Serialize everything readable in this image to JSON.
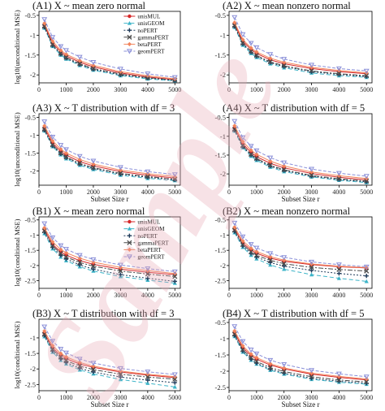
{
  "figure": {
    "watermark": "Sample",
    "colors": {
      "unisMUL": "#d62728",
      "unisGEOM": "#3cb4c8",
      "noPERT": "#1f3b5a",
      "gammaPERT": "#4a4a4a",
      "betaPERT": "#f2845c",
      "geomPERT": "#8a8fd8",
      "watermark": "#e8a6b4"
    }
  },
  "chart_data": [
    {
      "type": "line",
      "title": "(A1) X ~ mean zero normal",
      "xlabel": "",
      "ylabel": "log10(unconditional MSE)",
      "x": [
        200,
        500,
        800,
        1000,
        1500,
        2000,
        3000,
        4000,
        5000
      ],
      "xlim": [
        0,
        5200
      ],
      "ylim": [
        -2.2,
        -0.4
      ],
      "xticks": [
        0,
        1000,
        2000,
        3000,
        4000,
        5000
      ],
      "yticks": [
        -0.5,
        -1,
        -1.5,
        -2
      ],
      "yticklabels": [
        "-0.5",
        "-1",
        "-1.5",
        "-2"
      ],
      "xticklabels": [
        "0",
        "1000",
        "2000",
        "3000",
        "4000",
        "5000"
      ],
      "legend": {
        "position": "top-right",
        "entries": [
          "unisMUL",
          "unisGEOM",
          "noPERT",
          "gammaPERT",
          "betaPERT",
          "geomPERT"
        ]
      },
      "series": [
        {
          "name": "unisMUL",
          "values": [
            -0.75,
            -1.2,
            -1.42,
            -1.52,
            -1.68,
            -1.8,
            -1.95,
            -2.05,
            -2.12
          ]
        },
        {
          "name": "unisGEOM",
          "values": [
            -0.82,
            -1.28,
            -1.5,
            -1.6,
            -1.76,
            -1.88,
            -2.02,
            -2.1,
            -2.15
          ]
        },
        {
          "name": "noPERT",
          "values": [
            -0.8,
            -1.26,
            -1.48,
            -1.58,
            -1.74,
            -1.86,
            -2.0,
            -2.08,
            -2.14
          ]
        },
        {
          "name": "gammaPERT",
          "values": [
            -0.78,
            -1.24,
            -1.46,
            -1.56,
            -1.72,
            -1.84,
            -1.98,
            -2.07,
            -2.13
          ]
        },
        {
          "name": "betaPERT",
          "values": [
            -0.7,
            -1.15,
            -1.38,
            -1.48,
            -1.64,
            -1.76,
            -1.92,
            -2.02,
            -2.1
          ]
        },
        {
          "name": "geomPERT",
          "values": [
            -0.6,
            -1.05,
            -1.28,
            -1.38,
            -1.55,
            -1.68,
            -1.85,
            -1.97,
            -2.06
          ]
        }
      ]
    },
    {
      "type": "line",
      "title": "(A2) X ~ mean nonzero normal",
      "xlabel": "",
      "ylabel": "",
      "x": [
        200,
        500,
        800,
        1000,
        1500,
        2000,
        3000,
        4000,
        5000
      ],
      "xlim": [
        0,
        5200
      ],
      "ylim": [
        -2.2,
        -0.4
      ],
      "xticks": [
        0,
        1000,
        2000,
        3000,
        4000,
        5000
      ],
      "yticks": [
        -0.5,
        -1,
        -1.5,
        -2
      ],
      "yticklabels": [
        "-0.5",
        "-1",
        "-1.5",
        "-2"
      ],
      "xticklabels": [
        "0",
        "1000",
        "2000",
        "3000",
        "4000",
        "5000"
      ],
      "series": [
        {
          "name": "unisMUL",
          "values": [
            -0.72,
            -1.15,
            -1.36,
            -1.46,
            -1.62,
            -1.72,
            -1.84,
            -1.92,
            -1.97
          ]
        },
        {
          "name": "unisGEOM",
          "values": [
            -0.8,
            -1.25,
            -1.46,
            -1.56,
            -1.72,
            -1.82,
            -1.95,
            -2.02,
            -2.06
          ]
        },
        {
          "name": "noPERT",
          "values": [
            -0.78,
            -1.22,
            -1.43,
            -1.53,
            -1.69,
            -1.79,
            -1.92,
            -1.99,
            -2.04
          ]
        },
        {
          "name": "gammaPERT",
          "values": [
            -0.76,
            -1.2,
            -1.41,
            -1.51,
            -1.67,
            -1.77,
            -1.9,
            -1.97,
            -2.02
          ]
        },
        {
          "name": "betaPERT",
          "values": [
            -0.68,
            -1.11,
            -1.32,
            -1.42,
            -1.58,
            -1.68,
            -1.81,
            -1.89,
            -1.95
          ]
        },
        {
          "name": "geomPERT",
          "values": [
            -0.55,
            -0.98,
            -1.2,
            -1.31,
            -1.48,
            -1.6,
            -1.75,
            -1.84,
            -1.9
          ]
        }
      ]
    },
    {
      "type": "line",
      "title": "(A3) X ~ T distribution with df = 3",
      "xlabel": "Subset Size r",
      "ylabel": "log10(unconditional MSE)",
      "x": [
        200,
        500,
        800,
        1000,
        1500,
        2000,
        3000,
        4000,
        5000
      ],
      "xlim": [
        0,
        5200
      ],
      "ylim": [
        -2.4,
        -0.4
      ],
      "xticks": [
        0,
        1000,
        2000,
        3000,
        4000,
        5000
      ],
      "yticks": [
        -0.5,
        -1,
        -1.5,
        -2
      ],
      "yticklabels": [
        "-0.5",
        "-1",
        "-1.5",
        "-2"
      ],
      "xticklabels": [
        "0",
        "1000",
        "2000",
        "3000",
        "4000",
        "5000"
      ],
      "series": [
        {
          "name": "unisMUL",
          "values": [
            -0.8,
            -1.22,
            -1.45,
            -1.56,
            -1.74,
            -1.86,
            -2.02,
            -2.12,
            -2.2
          ]
        },
        {
          "name": "unisGEOM",
          "values": [
            -0.88,
            -1.32,
            -1.55,
            -1.66,
            -1.84,
            -1.96,
            -2.12,
            -2.21,
            -2.27
          ]
        },
        {
          "name": "noPERT",
          "values": [
            -0.86,
            -1.3,
            -1.52,
            -1.63,
            -1.81,
            -1.93,
            -2.09,
            -2.18,
            -2.25
          ]
        },
        {
          "name": "gammaPERT",
          "values": [
            -0.84,
            -1.27,
            -1.5,
            -1.61,
            -1.79,
            -1.91,
            -2.07,
            -2.16,
            -2.23
          ]
        },
        {
          "name": "betaPERT",
          "values": [
            -0.74,
            -1.16,
            -1.39,
            -1.5,
            -1.68,
            -1.81,
            -1.98,
            -2.08,
            -2.16
          ]
        },
        {
          "name": "geomPERT",
          "values": [
            -0.62,
            -1.05,
            -1.28,
            -1.4,
            -1.59,
            -1.72,
            -1.9,
            -2.02,
            -2.1
          ]
        }
      ]
    },
    {
      "type": "line",
      "title": "(A4) X ~ T distribution with df = 5",
      "xlabel": "Subset Size r",
      "ylabel": "",
      "x": [
        200,
        500,
        800,
        1000,
        1500,
        2000,
        3000,
        4000,
        5000
      ],
      "xlim": [
        0,
        5200
      ],
      "ylim": [
        -2.3,
        -0.4
      ],
      "xticks": [
        0,
        1000,
        2000,
        3000,
        4000,
        5000
      ],
      "yticks": [
        -0.5,
        -1,
        -1.5,
        -2
      ],
      "yticklabels": [
        "-0.5",
        "-1",
        "-1.5",
        "-2"
      ],
      "xticklabels": [
        "0",
        "1000",
        "2000",
        "3000",
        "4000",
        "5000"
      ],
      "series": [
        {
          "name": "unisMUL",
          "values": [
            -0.78,
            -1.2,
            -1.43,
            -1.54,
            -1.72,
            -1.84,
            -1.99,
            -2.09,
            -2.16
          ]
        },
        {
          "name": "unisGEOM",
          "values": [
            -0.86,
            -1.3,
            -1.53,
            -1.64,
            -1.82,
            -1.94,
            -2.08,
            -2.17,
            -2.23
          ]
        },
        {
          "name": "noPERT",
          "values": [
            -0.84,
            -1.28,
            -1.5,
            -1.61,
            -1.79,
            -1.91,
            -2.06,
            -2.15,
            -2.21
          ]
        },
        {
          "name": "gammaPERT",
          "values": [
            -0.82,
            -1.25,
            -1.48,
            -1.59,
            -1.77,
            -1.89,
            -2.04,
            -2.13,
            -2.19
          ]
        },
        {
          "name": "betaPERT",
          "values": [
            -0.72,
            -1.14,
            -1.37,
            -1.48,
            -1.66,
            -1.79,
            -1.95,
            -2.05,
            -2.12
          ]
        },
        {
          "name": "geomPERT",
          "values": [
            -0.6,
            -1.03,
            -1.26,
            -1.38,
            -1.57,
            -1.7,
            -1.87,
            -1.98,
            -2.06
          ]
        }
      ]
    },
    {
      "type": "line",
      "title": "(B1) X ~ mean zero normal",
      "xlabel": "",
      "ylabel": "log10(conditional MSE)",
      "x": [
        200,
        500,
        800,
        1000,
        1500,
        2000,
        3000,
        4000,
        5000
      ],
      "xlim": [
        0,
        5200
      ],
      "ylim": [
        -2.75,
        -0.4
      ],
      "xticks": [
        0,
        1000,
        2000,
        3000,
        4000,
        5000
      ],
      "yticks": [
        -0.5,
        -1,
        -1.5,
        -2,
        -2.5
      ],
      "yticklabels": [
        "-0.5",
        "-1",
        "-1.5",
        "-2",
        "-2.5"
      ],
      "xticklabels": [
        "0",
        "1000",
        "2000",
        "3000",
        "4000",
        "5000"
      ],
      "legend": {
        "position": "top-right",
        "entries": [
          "unisMUL",
          "unisGEOM",
          "noPERT",
          "gammaPERT",
          "betaPERT",
          "geomPERT"
        ]
      },
      "series": [
        {
          "name": "unisMUL",
          "values": [
            -0.82,
            -1.3,
            -1.55,
            -1.66,
            -1.84,
            -1.96,
            -2.12,
            -2.22,
            -2.3
          ]
        },
        {
          "name": "unisGEOM",
          "values": [
            -0.95,
            -1.45,
            -1.72,
            -1.84,
            -2.04,
            -2.18,
            -2.36,
            -2.48,
            -2.58
          ]
        },
        {
          "name": "noPERT",
          "values": [
            -0.9,
            -1.4,
            -1.66,
            -1.78,
            -1.98,
            -2.12,
            -2.3,
            -2.42,
            -2.52
          ]
        },
        {
          "name": "gammaPERT",
          "values": [
            -0.86,
            -1.35,
            -1.6,
            -1.72,
            -1.9,
            -2.02,
            -2.18,
            -2.28,
            -2.36
          ]
        },
        {
          "name": "betaPERT",
          "values": [
            -0.76,
            -1.22,
            -1.47,
            -1.58,
            -1.76,
            -1.89,
            -2.06,
            -2.17,
            -2.26
          ]
        },
        {
          "name": "geomPERT",
          "values": [
            -0.62,
            -1.08,
            -1.34,
            -1.46,
            -1.66,
            -1.8,
            -1.98,
            -2.1,
            -2.2
          ]
        }
      ]
    },
    {
      "type": "line",
      "title": "(B2) X ~ mean nonzero normal",
      "xlabel": "",
      "ylabel": "",
      "x": [
        200,
        500,
        800,
        1000,
        1500,
        2000,
        3000,
        4000,
        5000
      ],
      "xlim": [
        0,
        5200
      ],
      "ylim": [
        -2.75,
        -0.4
      ],
      "xticks": [
        0,
        1000,
        2000,
        3000,
        4000,
        5000
      ],
      "yticks": [
        -0.5,
        -1,
        -1.5,
        -2,
        -2.5
      ],
      "yticklabels": [
        "-0.5",
        "-1",
        "-1.5",
        "-2",
        "-2.5"
      ],
      "xticklabels": [
        "0",
        "1000",
        "2000",
        "3000",
        "4000",
        "5000"
      ],
      "series": [
        {
          "name": "unisMUL",
          "values": [
            -0.8,
            -1.26,
            -1.49,
            -1.6,
            -1.76,
            -1.86,
            -1.97,
            -2.04,
            -2.08
          ]
        },
        {
          "name": "unisGEOM",
          "values": [
            -0.92,
            -1.4,
            -1.66,
            -1.78,
            -1.98,
            -2.12,
            -2.3,
            -2.42,
            -2.52
          ]
        },
        {
          "name": "noPERT",
          "values": [
            -0.88,
            -1.36,
            -1.6,
            -1.72,
            -1.9,
            -2.02,
            -2.16,
            -2.26,
            -2.34
          ]
        },
        {
          "name": "gammaPERT",
          "values": [
            -0.84,
            -1.31,
            -1.55,
            -1.66,
            -1.83,
            -1.94,
            -2.06,
            -2.13,
            -2.18
          ]
        },
        {
          "name": "betaPERT",
          "values": [
            -0.74,
            -1.19,
            -1.43,
            -1.54,
            -1.71,
            -1.82,
            -1.95,
            -2.02,
            -2.07
          ]
        },
        {
          "name": "geomPERT",
          "values": [
            -0.6,
            -1.05,
            -1.3,
            -1.42,
            -1.6,
            -1.73,
            -1.88,
            -1.97,
            -2.04
          ]
        }
      ]
    },
    {
      "type": "line",
      "title": "(B3) X ~ T distribution with df = 3",
      "xlabel": "Subset Size r",
      "ylabel": "log10(conditional MSE)",
      "x": [
        200,
        500,
        800,
        1000,
        1500,
        2000,
        3000,
        4000,
        5000
      ],
      "xlim": [
        0,
        5200
      ],
      "ylim": [
        -2.7,
        -0.4
      ],
      "xticks": [
        0,
        1000,
        2000,
        3000,
        4000,
        5000
      ],
      "yticks": [
        -1,
        -1.5,
        -2,
        -2.5
      ],
      "yticklabels": [
        "-1",
        "-1.5",
        "-2",
        "-2.5"
      ],
      "xticklabels": [
        "0",
        "1000",
        "2000",
        "3000",
        "4000",
        "5000"
      ],
      "series": [
        {
          "name": "unisMUL",
          "values": [
            -0.85,
            -1.32,
            -1.56,
            -1.67,
            -1.84,
            -1.95,
            -2.1,
            -2.2,
            -2.28
          ]
        },
        {
          "name": "unisGEOM",
          "values": [
            -0.96,
            -1.46,
            -1.72,
            -1.84,
            -2.03,
            -2.16,
            -2.34,
            -2.46,
            -2.58
          ]
        },
        {
          "name": "noPERT",
          "values": [
            -0.92,
            -1.42,
            -1.67,
            -1.79,
            -1.98,
            -2.1,
            -2.26,
            -2.36,
            -2.44
          ]
        },
        {
          "name": "gammaPERT",
          "values": [
            -0.89,
            -1.37,
            -1.62,
            -1.73,
            -1.91,
            -2.02,
            -2.17,
            -2.26,
            -2.33
          ]
        },
        {
          "name": "betaPERT",
          "values": [
            -0.78,
            -1.25,
            -1.5,
            -1.61,
            -1.79,
            -1.91,
            -2.07,
            -2.17,
            -2.25
          ]
        },
        {
          "name": "geomPERT",
          "values": [
            -0.64,
            -1.1,
            -1.36,
            -1.48,
            -1.68,
            -1.81,
            -1.98,
            -2.09,
            -2.18
          ]
        }
      ]
    },
    {
      "type": "line",
      "title": "(B4) X ~ T distribution with df = 5",
      "xlabel": "Subset Size r",
      "ylabel": "",
      "x": [
        200,
        500,
        800,
        1000,
        1500,
        2000,
        3000,
        4000,
        5000
      ],
      "xlim": [
        0,
        5200
      ],
      "ylim": [
        -2.6,
        -0.4
      ],
      "xticks": [
        0,
        1000,
        2000,
        3000,
        4000,
        5000
      ],
      "yticks": [
        -0.5,
        -1,
        -1.5,
        -2,
        -2.5
      ],
      "yticklabels": [
        "-0.5",
        "-1",
        "-1.5",
        "-2",
        "-2.5"
      ],
      "xticklabels": [
        "0",
        "1000",
        "2000",
        "3000",
        "4000",
        "5000"
      ],
      "series": [
        {
          "name": "unisMUL",
          "values": [
            -0.82,
            -1.28,
            -1.52,
            -1.63,
            -1.81,
            -1.93,
            -2.09,
            -2.19,
            -2.27
          ]
        },
        {
          "name": "unisGEOM",
          "values": [
            -0.93,
            -1.41,
            -1.66,
            -1.78,
            -1.97,
            -2.09,
            -2.25,
            -2.34,
            -2.4
          ]
        },
        {
          "name": "noPERT",
          "values": [
            -0.9,
            -1.38,
            -1.63,
            -1.75,
            -1.94,
            -2.06,
            -2.22,
            -2.31,
            -2.37
          ]
        },
        {
          "name": "gammaPERT",
          "values": [
            -0.86,
            -1.34,
            -1.58,
            -1.7,
            -1.89,
            -2.01,
            -2.17,
            -2.27,
            -2.33
          ]
        },
        {
          "name": "betaPERT",
          "values": [
            -0.76,
            -1.22,
            -1.47,
            -1.58,
            -1.77,
            -1.9,
            -2.06,
            -2.16,
            -2.24
          ]
        },
        {
          "name": "geomPERT",
          "values": [
            -0.62,
            -1.08,
            -1.34,
            -1.46,
            -1.66,
            -1.79,
            -1.97,
            -2.08,
            -2.17
          ]
        }
      ]
    }
  ]
}
